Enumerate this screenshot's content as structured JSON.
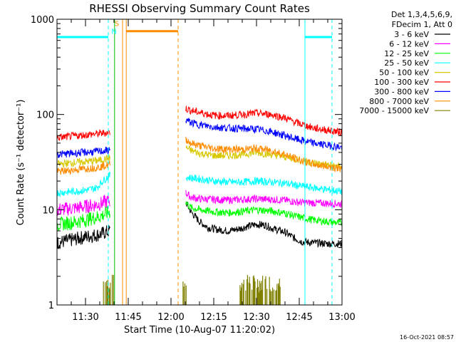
{
  "chart_data": {
    "type": "line",
    "title": "RHESSI Observing Summary Count Rates",
    "xlabel": "Start Time (10-Aug-07 11:20:02)",
    "ylabel": "Count Rate (s⁻¹ detector⁻¹)",
    "y_scale": "log",
    "ylim": [
      1,
      1000
    ],
    "y_ticks": [
      {
        "value": 1,
        "label": "1"
      },
      {
        "value": 10,
        "label": "10"
      },
      {
        "value": 100,
        "label": "100"
      },
      {
        "value": 1000,
        "label": "1000"
      }
    ],
    "xlim_minutes": [
      0,
      100
    ],
    "x_ticks": [
      {
        "minute": 10,
        "label": "11:30"
      },
      {
        "minute": 25,
        "label": "11:45"
      },
      {
        "minute": 40,
        "label": "12:00"
      },
      {
        "minute": 55,
        "label": "12:15"
      },
      {
        "minute": 70,
        "label": "12:30"
      },
      {
        "minute": 85,
        "label": "12:45"
      },
      {
        "minute": 100,
        "label": "13:00"
      }
    ],
    "legend_header": [
      "Det 1,3,4,5,6,9,",
      "FDecim 1, Att 0"
    ],
    "legend_position": "right",
    "series": [
      {
        "name": "3 - 6 keV",
        "color": "#000000",
        "segments": [
          {
            "x": [
              0,
              5,
              10,
              15,
              18.6
            ],
            "y": [
              4.5,
              4.8,
              5.2,
              5.5,
              6.0
            ]
          },
          {
            "x": [
              45.2,
              47,
              50,
              53,
              56,
              60,
              64,
              67,
              70,
              73,
              76,
              80,
              82,
              84,
              86,
              90,
              95,
              100
            ],
            "y": [
              12.0,
              9.5,
              7.5,
              6.5,
              6.2,
              6.0,
              6.3,
              6.7,
              7.0,
              6.9,
              6.3,
              5.8,
              5.3,
              4.9,
              4.6,
              4.5,
              4.4,
              4.4
            ]
          }
        ]
      },
      {
        "name": "6 - 12 keV",
        "color": "#ff00ff",
        "segments": [
          {
            "x": [
              0,
              5,
              10,
              15,
              18.6
            ],
            "y": [
              10.0,
              10.3,
              10.8,
              11.5,
              12.5
            ]
          },
          {
            "x": [
              45.2,
              47,
              50,
              55,
              60,
              65,
              70,
              75,
              80,
              84,
              90,
              100
            ],
            "y": [
              15.0,
              13.5,
              13.0,
              12.8,
              12.6,
              12.8,
              13.0,
              12.8,
              12.6,
              12.0,
              11.8,
              11.5
            ]
          }
        ]
      },
      {
        "name": "12 - 25 keV",
        "color": "#00ff00",
        "segments": [
          {
            "x": [
              0,
              5,
              10,
              15,
              18.6
            ],
            "y": [
              7.0,
              7.3,
              7.8,
              8.5,
              9.5
            ]
          },
          {
            "x": [
              45.2,
              47,
              50,
              55,
              60,
              65,
              70,
              75,
              80,
              84,
              90,
              100
            ],
            "y": [
              12.0,
              10.5,
              10.0,
              9.5,
              9.3,
              9.6,
              10.0,
              9.7,
              9.2,
              8.5,
              7.8,
              7.2
            ]
          }
        ]
      },
      {
        "name": "25 - 50 keV",
        "color": "#00ffff",
        "segments": [
          {
            "x": [
              0,
              5,
              10,
              14,
              16,
              18.6
            ],
            "y": [
              15.0,
              15.5,
              16.0,
              17.0,
              20.0,
              23.0
            ]
          },
          {
            "x": [
              45.2,
              50,
              55,
              60,
              65,
              70,
              75,
              80,
              84,
              90,
              100
            ],
            "y": [
              22.0,
              21.0,
              20.0,
              19.5,
              19.5,
              20.0,
              19.5,
              19.0,
              18.0,
              17.0,
              15.5
            ]
          }
        ]
      },
      {
        "name": "50 - 100 keV",
        "color": "#d7c800",
        "segments": [
          {
            "x": [
              0,
              5,
              10,
              15,
              18.6
            ],
            "y": [
              30.0,
              31.0,
              32.0,
              33.0,
              35.0
            ]
          },
          {
            "x": [
              45.2,
              47,
              50,
              55,
              60,
              65,
              70,
              75,
              80,
              84,
              90,
              100
            ],
            "y": [
              45.0,
              42.0,
              39.0,
              37.0,
              37.0,
              38.0,
              40.0,
              38.0,
              36.0,
              34.0,
              31.0,
              28.0
            ]
          }
        ]
      },
      {
        "name": "100 - 300 keV",
        "color": "#ff0000",
        "segments": [
          {
            "x": [
              0,
              5,
              10,
              15,
              18.6
            ],
            "y": [
              57.0,
              59.0,
              61.0,
              63.0,
              65.0
            ]
          },
          {
            "x": [
              45.2,
              47,
              50,
              55,
              60,
              65,
              70,
              75,
              80,
              84,
              90,
              100
            ],
            "y": [
              115.0,
              110.0,
              105.0,
              98.0,
              97.0,
              100.0,
              103.0,
              100.0,
              92.0,
              82.0,
              72.0,
              65.0
            ]
          }
        ]
      },
      {
        "name": "300 - 800 keV",
        "color": "#0000ff",
        "segments": [
          {
            "x": [
              0,
              5,
              10,
              15,
              18.6
            ],
            "y": [
              38.0,
              39.0,
              40.0,
              41.0,
              42.0
            ]
          },
          {
            "x": [
              45.2,
              47,
              50,
              55,
              60,
              65,
              70,
              75,
              80,
              84,
              90,
              100
            ],
            "y": [
              88.0,
              82.0,
              78.0,
              74.0,
              72.0,
              71.0,
              70.0,
              66.0,
              60.0,
              55.0,
              50.0,
              45.0
            ]
          }
        ]
      },
      {
        "name": "800 - 7000 keV",
        "color": "#ff8c00",
        "segments": [
          {
            "x": [
              0,
              5,
              10,
              15,
              18.6
            ],
            "y": [
              25.0,
              26.0,
              27.0,
              28.0,
              30.0
            ]
          },
          {
            "x": [
              45.2,
              47,
              50,
              55,
              60,
              65,
              70,
              75,
              80,
              84,
              90,
              100
            ],
            "y": [
              55.0,
              50.0,
              47.0,
              44.0,
              43.0,
              43.0,
              44.0,
              42.0,
              38.0,
              34.0,
              30.0,
              27.0
            ]
          },
          {
            "x": [
              24.3,
              42.5
            ],
            "y": [
              750.0,
              750.0
            ]
          }
        ]
      },
      {
        "name": "7000 - 15000 keV",
        "color": "#808000",
        "segments": []
      }
    ],
    "bursts_7000_15000": [
      {
        "x_start": 16.3,
        "x_end": 20.0
      },
      {
        "x_start": 44.0,
        "x_end": 45.5
      },
      {
        "x_start": 64.0,
        "x_end": 78.5
      }
    ],
    "marker_lines": [
      {
        "minute": 0,
        "color": "#00ffff",
        "style": "solid"
      },
      {
        "minute": 18.0,
        "color": "#00ffff",
        "style": "dashed"
      },
      {
        "minute": 87.0,
        "color": "#00ffff",
        "style": "solid"
      },
      {
        "minute": 96.5,
        "color": "#00ffff",
        "style": "dashed"
      },
      {
        "minute": 23.0,
        "color": "#ff8c00",
        "style": "solid"
      },
      {
        "minute": 24.3,
        "color": "#ff8c00",
        "style": "solid"
      },
      {
        "minute": 42.5,
        "color": "#ff8c00",
        "style": "dashed"
      },
      {
        "minute": 20.2,
        "color": "#00c000",
        "style": "solid"
      }
    ],
    "flag_lines": [
      {
        "x_start": 0,
        "x_end": 18.0,
        "y": 650,
        "color": "#00ffff"
      },
      {
        "x_start": 87.0,
        "x_end": 96.5,
        "y": 650,
        "color": "#00ffff"
      }
    ],
    "annotations": [
      {
        "text": "S",
        "color": "#ff8c00",
        "minute": 21.0,
        "value": 850
      },
      {
        "text": "N",
        "color": "#00ffff",
        "minute": 20.0,
        "value": 700
      }
    ]
  },
  "timestamp": "16-Oct-2021 08:57"
}
